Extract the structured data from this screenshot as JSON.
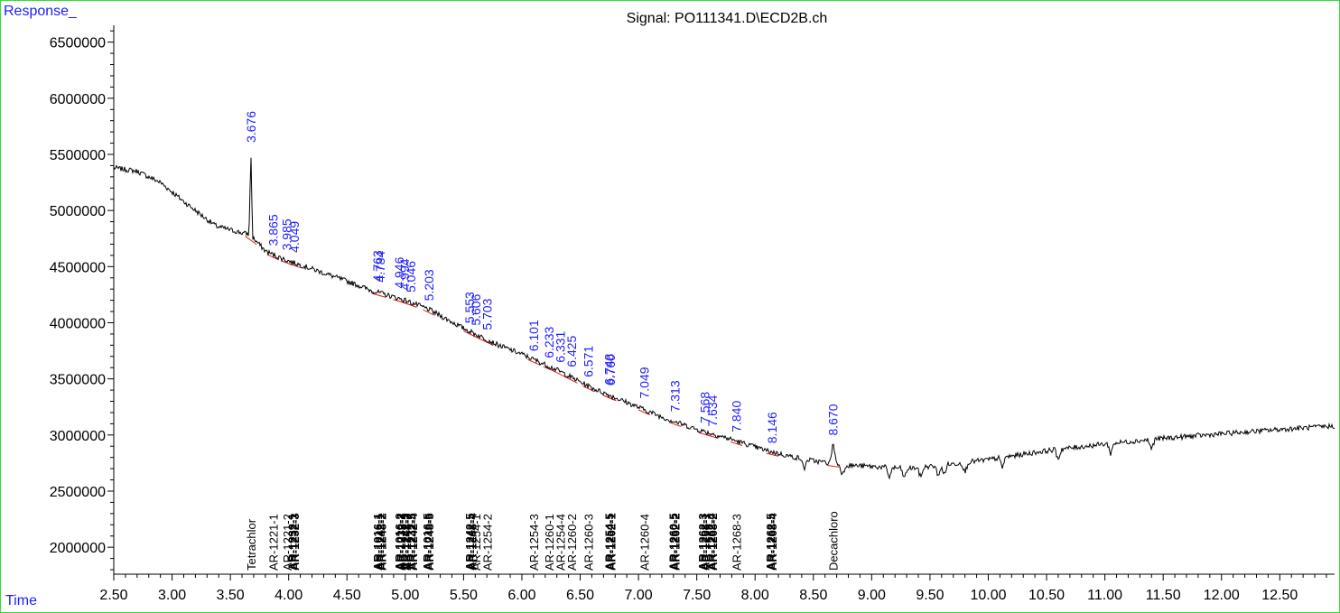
{
  "chart_data": {
    "type": "line",
    "title": "Signal: PO111341.D\\ECD2B.ch",
    "ylabel": "Response_",
    "xlabel": "Time",
    "xlim": [
      2.5,
      12.97
    ],
    "ylim": [
      1760000,
      6650000
    ],
    "x_ticks": [
      2.5,
      3.0,
      3.5,
      4.0,
      4.5,
      5.0,
      5.5,
      6.0,
      6.5,
      7.0,
      7.5,
      8.0,
      8.5,
      9.0,
      9.5,
      10.0,
      10.5,
      11.0,
      11.5,
      12.0,
      12.5
    ],
    "x_tick_labels": [
      "2.50",
      "3.00",
      "3.50",
      "4.00",
      "4.50",
      "5.00",
      "5.50",
      "6.00",
      "6.50",
      "7.00",
      "7.50",
      "8.00",
      "8.50",
      "9.00",
      "9.50",
      "10.00",
      "10.50",
      "11.00",
      "11.50",
      "12.00",
      "12.50"
    ],
    "y_ticks": [
      2000000,
      2500000,
      3000000,
      3500000,
      4000000,
      4500000,
      5000000,
      5500000,
      6000000,
      6500000
    ],
    "y_tick_labels": [
      "2000000",
      "2500000",
      "3000000",
      "3500000",
      "4000000",
      "4500000",
      "5000000",
      "5500000",
      "6000000",
      "6500000"
    ],
    "grid": false,
    "colors": {
      "signal": "#000000",
      "baseline": "#e02020",
      "peak_label": "#2020ff",
      "frame": "#33dd33"
    },
    "series": [
      {
        "x": [
          2.5,
          2.7,
          2.9,
          3.1,
          3.3,
          3.38,
          3.45,
          3.6,
          3.66,
          3.676,
          3.69,
          3.8,
          3.9,
          4.0,
          4.2,
          4.5,
          4.63,
          4.7,
          5.0,
          5.2,
          5.5,
          5.8,
          6.0,
          6.3,
          6.6,
          6.9,
          7.2,
          7.5,
          7.8,
          8.1,
          8.3,
          8.5,
          8.64,
          8.67,
          8.7,
          8.8,
          9.0,
          9.3,
          9.6,
          10.0,
          10.5,
          11.0,
          11.5,
          12.0,
          12.5,
          12.97
        ],
        "y": [
          5380000,
          5350000,
          5250000,
          5080000,
          4920000,
          4860000,
          4840000,
          4800000,
          4790000,
          5540000,
          4760000,
          4640000,
          4590000,
          4550000,
          4480000,
          4370000,
          4320000,
          4290000,
          4200000,
          4120000,
          3950000,
          3800000,
          3720000,
          3580000,
          3420000,
          3290000,
          3160000,
          3050000,
          2960000,
          2860000,
          2810000,
          2770000,
          2750000,
          2930000,
          2740000,
          2730000,
          2720000,
          2700000,
          2730000,
          2780000,
          2860000,
          2920000,
          2970000,
          3010000,
          3050000,
          3080000
        ]
      }
    ],
    "peaks": [
      {
        "rt": "3.676",
        "x": 3.676,
        "y": 5540000
      },
      {
        "rt": "3.865",
        "x": 3.865,
        "y": 4620000
      },
      {
        "rt": "3.985",
        "x": 3.985,
        "y": 4580000
      },
      {
        "rt": "4.049",
        "x": 4.049,
        "y": 4560000
      },
      {
        "rt": "4.763",
        "x": 4.763,
        "y": 4300000
      },
      {
        "rt": "4.784",
        "x": 4.784,
        "y": 4295000
      },
      {
        "rt": "4.946",
        "x": 4.946,
        "y": 4240000
      },
      {
        "rt": "4.994",
        "x": 4.994,
        "y": 4225000
      },
      {
        "rt": "5.046",
        "x": 5.046,
        "y": 4205000
      },
      {
        "rt": "5.203",
        "x": 5.203,
        "y": 4130000
      },
      {
        "rt": "5.553",
        "x": 5.553,
        "y": 3930000
      },
      {
        "rt": "5.606",
        "x": 5.606,
        "y": 3910000
      },
      {
        "rt": "5.703",
        "x": 5.703,
        "y": 3870000
      },
      {
        "rt": "6.101",
        "x": 6.101,
        "y": 3680000
      },
      {
        "rt": "6.233",
        "x": 6.233,
        "y": 3620000
      },
      {
        "rt": "6.331",
        "x": 6.331,
        "y": 3580000
      },
      {
        "rt": "6.425",
        "x": 6.425,
        "y": 3540000
      },
      {
        "rt": "6.571",
        "x": 6.571,
        "y": 3450000
      },
      {
        "rt": "6.748",
        "x": 6.748,
        "y": 3380000
      },
      {
        "rt": "6.760",
        "x": 6.76,
        "y": 3375000
      },
      {
        "rt": "7.049",
        "x": 7.049,
        "y": 3260000
      },
      {
        "rt": "7.313",
        "x": 7.313,
        "y": 3140000
      },
      {
        "rt": "7.568",
        "x": 7.568,
        "y": 3040000
      },
      {
        "rt": "7.634",
        "x": 7.634,
        "y": 3010000
      },
      {
        "rt": "7.840",
        "x": 7.84,
        "y": 2960000
      },
      {
        "rt": "8.146",
        "x": 8.146,
        "y": 2860000
      },
      {
        "rt": "8.670",
        "x": 8.67,
        "y": 2930000
      }
    ],
    "compound_labels": [
      {
        "x": 3.676,
        "label": "Tetrachlor",
        "bold": false
      },
      {
        "x": 3.865,
        "label": "AR-1221-1",
        "bold": false
      },
      {
        "x": 3.985,
        "label": "AR-1221-2",
        "bold": false
      },
      {
        "x": 4.03,
        "label": "AR-1232-1",
        "bold": true
      },
      {
        "x": 4.049,
        "label": "AR-1232-3",
        "bold": true
      },
      {
        "x": 4.763,
        "label": "AR-1016-1",
        "bold": true
      },
      {
        "x": 4.78,
        "label": "AR-1242-1",
        "bold": true
      },
      {
        "x": 4.797,
        "label": "AR-1248-2",
        "bold": true
      },
      {
        "x": 4.946,
        "label": "AR-1016-2",
        "bold": true
      },
      {
        "x": 4.963,
        "label": "AR-1232-2",
        "bold": true
      },
      {
        "x": 4.994,
        "label": "AR-1242-3",
        "bold": true
      },
      {
        "x": 5.011,
        "label": "AR-1248-3",
        "bold": true
      },
      {
        "x": 5.046,
        "label": "AR-1232-5",
        "bold": true
      },
      {
        "x": 5.063,
        "label": "AR-1242-4",
        "bold": true
      },
      {
        "x": 5.186,
        "label": "AR-1016-5",
        "bold": true
      },
      {
        "x": 5.203,
        "label": "AR-1248-5",
        "bold": true
      },
      {
        "x": 5.553,
        "label": "AR-1242-5",
        "bold": true
      },
      {
        "x": 5.57,
        "label": "AR-1248-4",
        "bold": true
      },
      {
        "x": 5.606,
        "label": "AR-1254-1",
        "bold": false
      },
      {
        "x": 5.703,
        "label": "AR-1254-2",
        "bold": false
      },
      {
        "x": 6.101,
        "label": "AR-1254-3",
        "bold": false
      },
      {
        "x": 6.233,
        "label": "AR-1260-1",
        "bold": false
      },
      {
        "x": 6.331,
        "label": "AR-1254-4",
        "bold": false
      },
      {
        "x": 6.425,
        "label": "AR-1260-2",
        "bold": false
      },
      {
        "x": 6.571,
        "label": "AR-1260-3",
        "bold": false
      },
      {
        "x": 6.748,
        "label": "AR-1254-5",
        "bold": true
      },
      {
        "x": 6.765,
        "label": "AR-1262-1",
        "bold": true
      },
      {
        "x": 7.049,
        "label": "AR-1260-4",
        "bold": false
      },
      {
        "x": 7.296,
        "label": "AR-1260-5",
        "bold": true
      },
      {
        "x": 7.313,
        "label": "AR-1262-2",
        "bold": true
      },
      {
        "x": 7.551,
        "label": "AR-1262-3",
        "bold": true
      },
      {
        "x": 7.568,
        "label": "AR-1268-1",
        "bold": true
      },
      {
        "x": 7.617,
        "label": "AR-1262-4",
        "bold": true
      },
      {
        "x": 7.634,
        "label": "AR-1268-2",
        "bold": true
      },
      {
        "x": 7.84,
        "label": "AR-1268-3",
        "bold": false
      },
      {
        "x": 8.129,
        "label": "AR-1262-5",
        "bold": true
      },
      {
        "x": 8.146,
        "label": "AR-1268-4",
        "bold": true
      },
      {
        "x": 8.67,
        "label": "Decachloro",
        "bold": false
      }
    ]
  }
}
